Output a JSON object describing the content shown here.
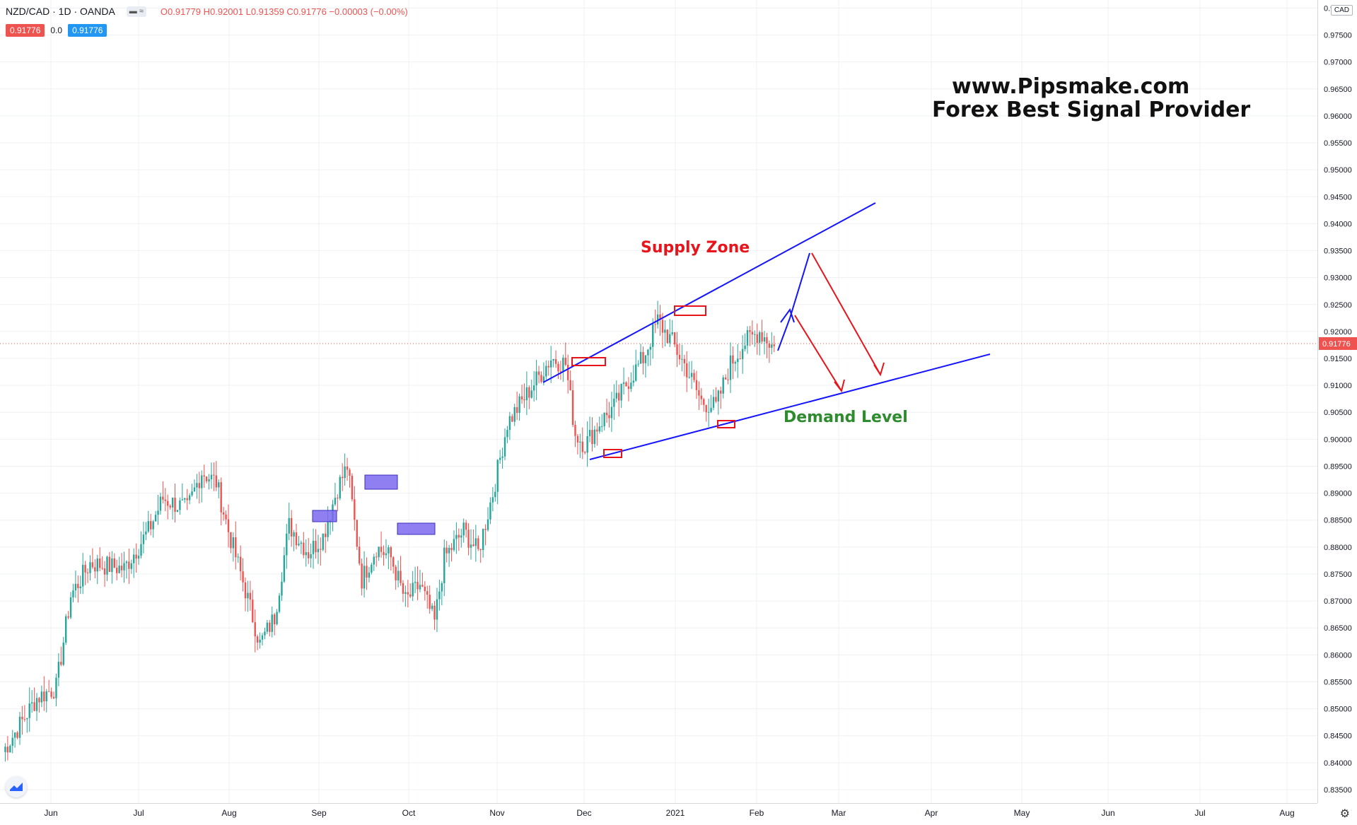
{
  "header": {
    "symbol": "NZD/CAD · 1D · OANDA",
    "ohlc": "O0.91779 H0.92001 L0.91359 C0.91776 −0.00003 (−0.00%)",
    "bid": "0.91776",
    "spread": "0.0",
    "ask": "0.91776"
  },
  "currency": "CAD",
  "last_price_label": "0.91776",
  "watermark": {
    "line1": "www.Pipsmake.com",
    "line2": "Forex Best Signal Provider"
  },
  "annotations": {
    "supply": "Supply Zone",
    "demand": "Demand Level"
  },
  "colors": {
    "up": "#26a69a",
    "down": "#ef5350",
    "trendline": "#1414ff",
    "arrow_down": "#e8141b",
    "zone_fill": "#7b68ee"
  },
  "chart_data": {
    "type": "candlestick",
    "title": "NZD/CAD · 1D · OANDA",
    "ylim": [
      0.8325,
      0.9815
    ],
    "yticks": [
      0.835,
      0.84,
      0.845,
      0.85,
      0.855,
      0.86,
      0.865,
      0.87,
      0.875,
      0.88,
      0.885,
      0.89,
      0.895,
      0.9,
      0.905,
      0.91,
      0.915,
      0.92,
      0.925,
      0.93,
      0.935,
      0.94,
      0.945,
      0.95,
      0.955,
      0.96,
      0.965,
      0.97,
      0.975,
      0.98
    ],
    "ytick_labels": [
      "0.83500",
      "0.84000",
      "0.84500",
      "0.85000",
      "0.85500",
      "0.86000",
      "0.86500",
      "0.87000",
      "0.87500",
      "0.88000",
      "0.88500",
      "0.89000",
      "0.89500",
      "0.90000",
      "0.90500",
      "0.91000",
      "0.91500",
      "0.92000",
      "0.92500",
      "0.93000",
      "0.93500",
      "0.94000",
      "0.94500",
      "0.95000",
      "0.95500",
      "0.96000",
      "0.96500",
      "0.97000",
      "0.97500",
      "0.98000"
    ],
    "xticks": [
      "Jun",
      "Jul",
      "Aug",
      "Sep",
      "Oct",
      "Nov",
      "Dec",
      "2021",
      "Feb",
      "Mar",
      "Apr",
      "May",
      "Jun",
      "Jul",
      "Aug"
    ],
    "last_close": 0.91776,
    "closes_start": 0.838,
    "closes_end": 0.9178
  }
}
